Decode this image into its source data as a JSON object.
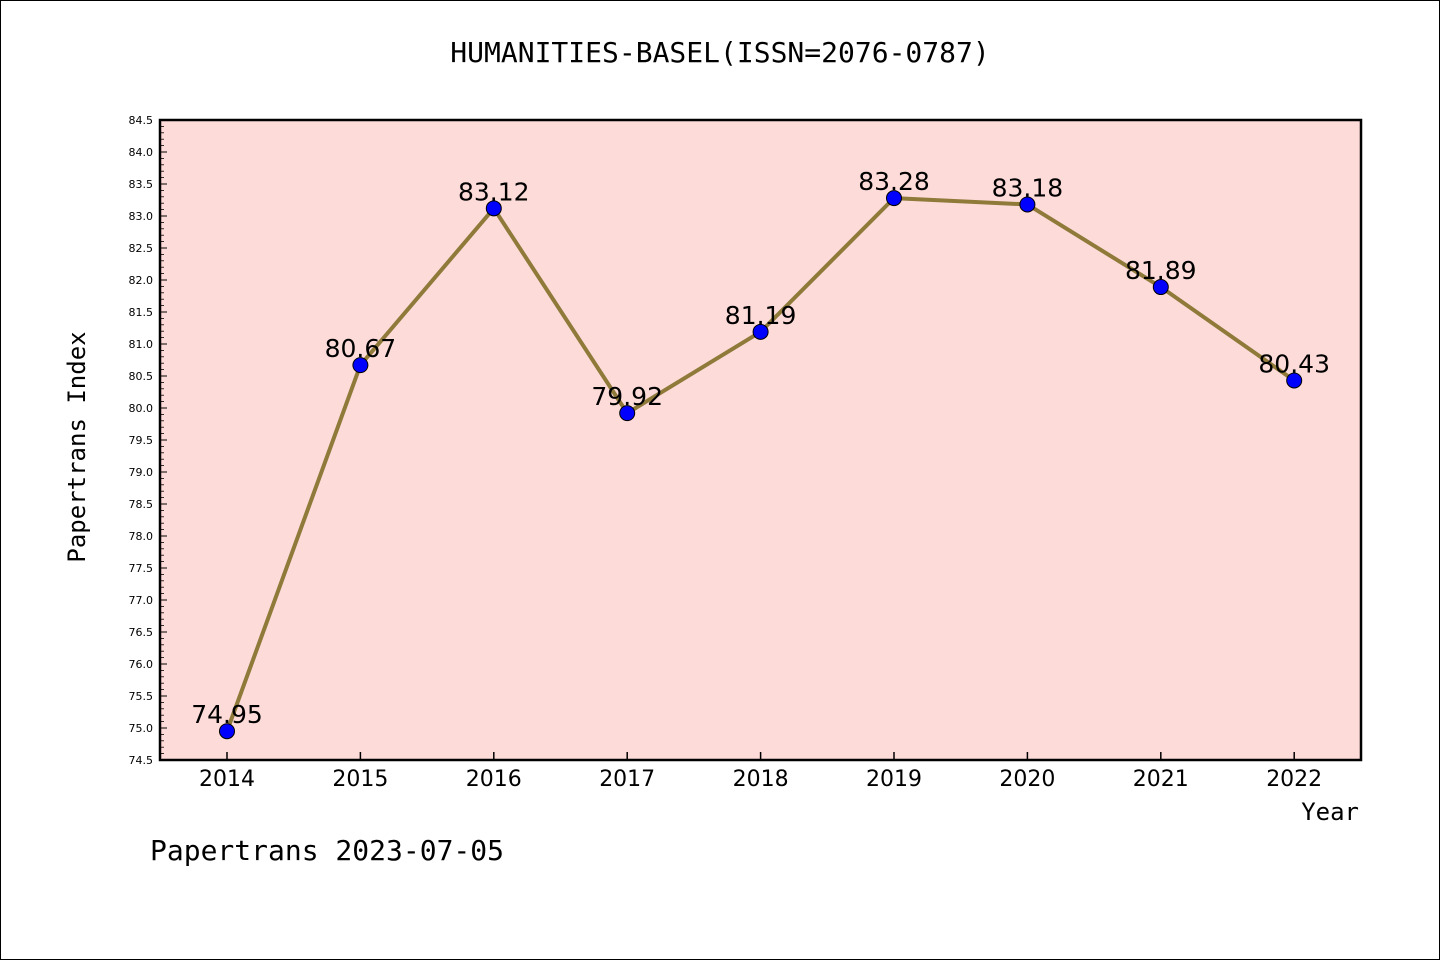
{
  "chart_data": {
    "type": "line",
    "title": "HUMANITIES-BASEL(ISSN=2076-0787)",
    "xlabel": "Year",
    "ylabel": "Papertrans Index",
    "categories": [
      "2014",
      "2015",
      "2016",
      "2017",
      "2018",
      "2019",
      "2020",
      "2021",
      "2022"
    ],
    "series": [
      {
        "values": [
          74.95,
          80.67,
          83.12,
          79.92,
          81.19,
          83.28,
          83.18,
          81.89,
          80.43
        ],
        "labels": [
          "74.95",
          "80.67",
          "83.12",
          "79.92",
          "81.19",
          "83.28",
          "83.18",
          "81.89",
          "80.43"
        ]
      }
    ],
    "ylim": [
      74.5,
      84.5
    ],
    "ytick_labels": [
      "74.5",
      "75.0",
      "75.5",
      "76.0",
      "76.5",
      "77.0",
      "77.5",
      "78.0",
      "78.5",
      "79.0",
      "79.5",
      "80.0",
      "80.5",
      "81.0",
      "81.5",
      "82.0",
      "82.5",
      "83.0",
      "83.5",
      "84.0",
      "84.5"
    ],
    "grid": false,
    "colors": {
      "plot_background": "#fddbd9",
      "line": "#8f7a3a",
      "marker": "#0000ff"
    }
  },
  "footer": "Papertrans 2023-07-05"
}
